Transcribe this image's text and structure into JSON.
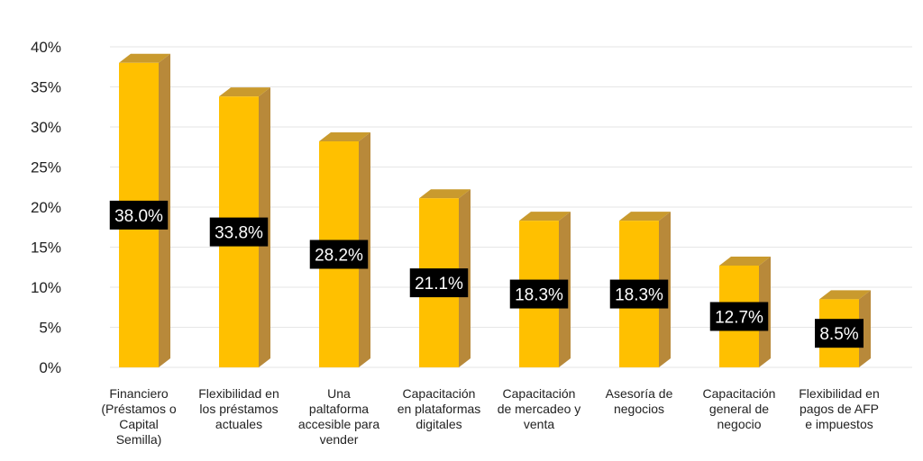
{
  "chart_data": {
    "type": "bar",
    "categories": [
      [
        "Financiero",
        "(Préstamos o",
        "Capital",
        "Semilla)"
      ],
      [
        "Flexibilidad en",
        "los préstamos",
        "actuales"
      ],
      [
        "Una",
        "paltaforma",
        "accesible para",
        "vender"
      ],
      [
        "Capacitación",
        "en plataformas",
        "digitales"
      ],
      [
        "Capacitación",
        "de mercadeo y",
        "venta"
      ],
      [
        "Asesoría de",
        "negocios"
      ],
      [
        "Capacitación",
        "general de",
        "negocio"
      ],
      [
        "Flexibilidad en",
        "pagos de AFP",
        "e impuestos"
      ]
    ],
    "values": [
      38.0,
      33.8,
      28.2,
      21.1,
      18.3,
      18.3,
      12.7,
      8.5
    ],
    "data_labels": [
      "38.0%",
      "33.8%",
      "28.2%",
      "21.1%",
      "18.3%",
      "18.3%",
      "12.7%",
      "8.5%"
    ],
    "y_ticks": [
      "0%",
      "5%",
      "10%",
      "15%",
      "20%",
      "25%",
      "30%",
      "35%",
      "40%"
    ],
    "ylim": [
      0,
      40
    ],
    "title": "",
    "xlabel": "",
    "ylabel": "",
    "grid": true,
    "style": "3d-column",
    "colors": {
      "bar_front": "#FFC000",
      "bar_side": "#B8893A",
      "bar_top": "#C99A2E",
      "label_bg": "#000000",
      "label_text": "#FFFFFF",
      "grid": "#E6E6E6"
    }
  }
}
